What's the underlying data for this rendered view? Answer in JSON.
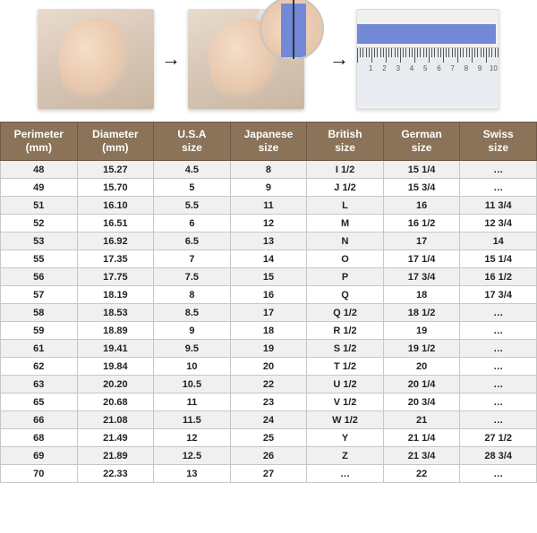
{
  "images": {
    "ruler_numbers": [
      "1",
      "2",
      "3",
      "4",
      "5",
      "6",
      "7",
      "8",
      "9",
      "10"
    ]
  },
  "table": {
    "columns": [
      {
        "line1": "Perimeter",
        "line2": "(mm)"
      },
      {
        "line1": "Diameter",
        "line2": "(mm)"
      },
      {
        "line1": "U.S.A",
        "line2": "size"
      },
      {
        "line1": "Japanese",
        "line2": "size"
      },
      {
        "line1": "British",
        "line2": "size"
      },
      {
        "line1": "German",
        "line2": "size"
      },
      {
        "line1": "Swiss",
        "line2": "size"
      }
    ],
    "rows": [
      [
        "48",
        "15.27",
        "4.5",
        "8",
        "I 1/2",
        "15 1/4",
        "…"
      ],
      [
        "49",
        "15.70",
        "5",
        "9",
        "J 1/2",
        "15 3/4",
        "…"
      ],
      [
        "51",
        "16.10",
        "5.5",
        "11",
        "L",
        "16",
        "11 3/4"
      ],
      [
        "52",
        "16.51",
        "6",
        "12",
        "M",
        "16 1/2",
        "12 3/4"
      ],
      [
        "53",
        "16.92",
        "6.5",
        "13",
        "N",
        "17",
        "14"
      ],
      [
        "55",
        "17.35",
        "7",
        "14",
        "O",
        "17 1/4",
        "15 1/4"
      ],
      [
        "56",
        "17.75",
        "7.5",
        "15",
        "P",
        "17 3/4",
        "16 1/2"
      ],
      [
        "57",
        "18.19",
        "8",
        "16",
        "Q",
        "18",
        "17 3/4"
      ],
      [
        "58",
        "18.53",
        "8.5",
        "17",
        "Q 1/2",
        "18 1/2",
        "…"
      ],
      [
        "59",
        "18.89",
        "9",
        "18",
        "R 1/2",
        "19",
        "…"
      ],
      [
        "61",
        "19.41",
        "9.5",
        "19",
        "S 1/2",
        "19 1/2",
        "…"
      ],
      [
        "62",
        "19.84",
        "10",
        "20",
        "T 1/2",
        "20",
        "…"
      ],
      [
        "63",
        "20.20",
        "10.5",
        "22",
        "U 1/2",
        "20 1/4",
        "…"
      ],
      [
        "65",
        "20.68",
        "11",
        "23",
        "V 1/2",
        "20 3/4",
        "…"
      ],
      [
        "66",
        "21.08",
        "11.5",
        "24",
        "W 1/2",
        "21",
        "…"
      ],
      [
        "68",
        "21.49",
        "12",
        "25",
        "Y",
        "21 1/4",
        "27 1/2"
      ],
      [
        "69",
        "21.89",
        "12.5",
        "26",
        "Z",
        "21 3/4",
        "28 3/4"
      ],
      [
        "70",
        "22.33",
        "13",
        "27",
        "…",
        "22",
        "…"
      ]
    ],
    "header_bg": "#8a7358",
    "header_fg": "#ffffff",
    "row_alt_bg": "#f0f0f0",
    "row_bg": "#ffffff",
    "border_color": "#c7c7c7",
    "font_size_header": 12,
    "font_size_cell": 11
  }
}
